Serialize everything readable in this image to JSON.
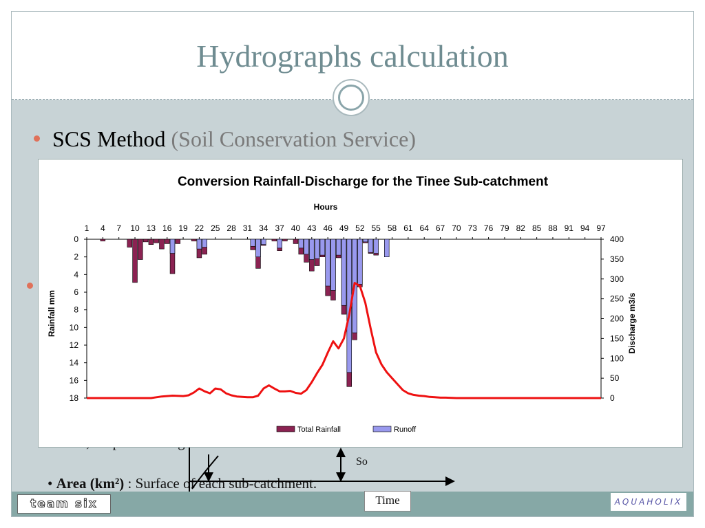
{
  "slide": {
    "title": "Hydrographs calculation",
    "subtitle_main": "SCS Method",
    "subtitle_paren": "(Soil Conservation Service)",
    "background_text_1": "Surface, Slope and Longest Flow Path.",
    "background_text_2_bold": "Area (km²)",
    "background_text_2_rest": " : Surface of each sub-catchment.",
    "so_label": "So",
    "time_label": "Time",
    "logo_left": "team six",
    "logo_right": "AQUAHOLIX",
    "colors": {
      "title": "#6f8c91",
      "bullet": "#e0715a",
      "background": "#c8d3d6",
      "footer": "#86a8a6"
    }
  },
  "chart_data": {
    "type": "bar",
    "title": "Conversion Rainfall-Discharge for the Tinee Sub-catchment",
    "xlabel": "Hours",
    "ylabel_left": "Rainfall  mm",
    "ylabel_right": "Discharge m3/s",
    "x_ticks": [
      "1",
      "4",
      "7",
      "10",
      "13",
      "16",
      "19",
      "22",
      "25",
      "28",
      "31",
      "34",
      "37",
      "40",
      "43",
      "46",
      "49",
      "52",
      "55",
      "58",
      "61",
      "64",
      "67",
      "70",
      "73",
      "76",
      "79",
      "82",
      "85",
      "88",
      "91",
      "94",
      "97"
    ],
    "y_left_ticks": [
      "0",
      "2",
      "4",
      "6",
      "8",
      "10",
      "12",
      "14",
      "16",
      "18"
    ],
    "y_right_ticks": [
      "400",
      "350",
      "300",
      "250",
      "200",
      "150",
      "100",
      "50",
      "0"
    ],
    "ylim_left": [
      0,
      18
    ],
    "ylim_right": [
      0,
      400
    ],
    "left_axis_inverted": true,
    "legend_position": "bottom",
    "colors": {
      "total_rainfall": "#8b2252",
      "runoff": "#9999ee",
      "discharge": "#ee1111"
    },
    "series": [
      {
        "name": "Total Rainfall",
        "hours": [
          4,
          9,
          10,
          11,
          12,
          13,
          14,
          15,
          16,
          17,
          18,
          21,
          22,
          23,
          32,
          33,
          34,
          36,
          37,
          38,
          40,
          41,
          42,
          43,
          44,
          45,
          46,
          47,
          48,
          49,
          50,
          51,
          52,
          53,
          54,
          55,
          57
        ],
        "values": [
          0.2,
          0.9,
          4.9,
          2.3,
          0.3,
          0.6,
          0.4,
          1.1,
          0.5,
          3.9,
          0.5,
          0.2,
          2.1,
          1.7,
          1.2,
          3.3,
          0.7,
          0.2,
          1.3,
          0.2,
          0.5,
          1.7,
          2.6,
          3.6,
          3.0,
          2.0,
          6.4,
          6.9,
          2.1,
          8.5,
          16.7,
          11.4,
          5.4,
          0.4,
          1.6,
          1.8,
          2.0
        ]
      },
      {
        "name": "Runoff",
        "hours": [
          17,
          22,
          23,
          32,
          33,
          34,
          37,
          41,
          42,
          43,
          44,
          45,
          46,
          47,
          48,
          49,
          50,
          51,
          52,
          53,
          54,
          55,
          57
        ],
        "values": [
          1.6,
          1.1,
          0.9,
          0.8,
          2.0,
          0.6,
          1.0,
          1.0,
          1.7,
          2.3,
          2.2,
          1.8,
          5.3,
          5.8,
          1.8,
          7.5,
          15.1,
          10.6,
          5.1,
          0.3,
          1.5,
          1.6,
          2.0
        ]
      },
      {
        "name": "Discharge",
        "hours": [
          1,
          10,
          13,
          14,
          15,
          17,
          19,
          20,
          21,
          22,
          23,
          24,
          25,
          26,
          27,
          28,
          29,
          30,
          31,
          32,
          33,
          34,
          35,
          36,
          37,
          38,
          39,
          40,
          41,
          42,
          43,
          44,
          45,
          46,
          47,
          48,
          49,
          50,
          51,
          52,
          53,
          54,
          55,
          56,
          57,
          58,
          59,
          60,
          61,
          62,
          63,
          64,
          65,
          66,
          67,
          68,
          70,
          72,
          75,
          80,
          90,
          97
        ],
        "values": [
          0,
          0,
          0,
          2,
          4,
          6,
          5,
          7,
          14,
          24,
          17,
          12,
          24,
          22,
          12,
          7,
          4,
          3,
          2,
          2,
          6,
          24,
          32,
          24,
          17,
          17,
          18,
          13,
          11,
          20,
          40,
          63,
          84,
          115,
          143,
          125,
          150,
          210,
          290,
          282,
          240,
          175,
          115,
          85,
          65,
          50,
          35,
          20,
          12,
          8,
          6,
          5,
          3,
          2,
          1,
          1,
          0,
          0,
          0,
          0,
          0,
          0
        ]
      }
    ]
  }
}
